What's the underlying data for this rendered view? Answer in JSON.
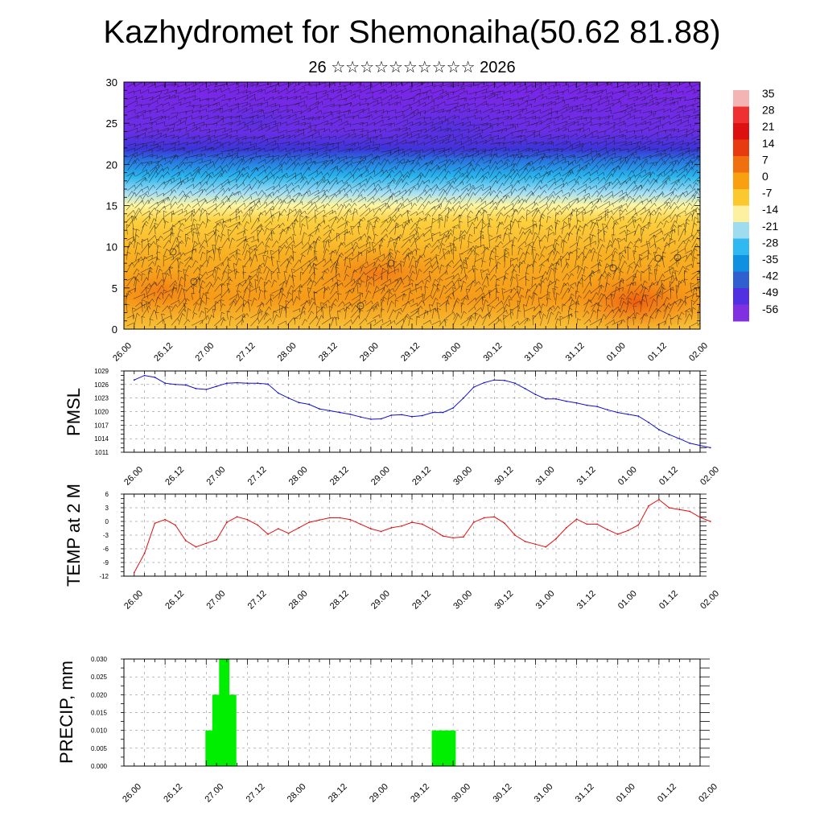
{
  "title": "Kazhydromet for Shemonaiha(50.62 81.88)",
  "subtitle": "26 ☆☆☆☆☆☆☆☆☆☆ 2026",
  "time_labels": [
    "26.00",
    "26.12",
    "27.00",
    "27.12",
    "28.00",
    "28.12",
    "29.00",
    "29.12",
    "30.00",
    "30.12",
    "31.00",
    "31.12",
    "01.00",
    "01.12",
    "02.00"
  ],
  "colors": {
    "pmsl_line": "#1010d0",
    "temp_line": "#e01010",
    "precip_bar": "#00ee00"
  },
  "chart_data": [
    {
      "type": "heatmap",
      "name": "vertical temperature cross-section with wind barbs",
      "ylim": [
        0,
        30
      ],
      "yticks": [
        0,
        5,
        10,
        15,
        20,
        25,
        30
      ],
      "colorbar_ticks": [
        35,
        28,
        21,
        14,
        7,
        0,
        -7,
        -14,
        -21,
        -28,
        -35,
        -42,
        -49,
        -56
      ],
      "colorbar_colors": [
        "#f4b4b4",
        "#ee3030",
        "#dd1010",
        "#e83a10",
        "#f07010",
        "#f8a010",
        "#fbc830",
        "#fdf0a0",
        "#a0dcf0",
        "#30b8f0",
        "#1090e0",
        "#3060d0",
        "#5030e0",
        "#8030e0"
      ]
    },
    {
      "type": "line",
      "name": "pmsl",
      "ylabel": "PMSL",
      "ylim": [
        1011,
        1029
      ],
      "yticks": [
        1011,
        1014,
        1017,
        1020,
        1023,
        1026,
        1029
      ],
      "values": [
        1027.0,
        1028.0,
        1027.6,
        1026.3,
        1026.0,
        1025.9,
        1025.1,
        1024.9,
        1025.6,
        1026.3,
        1026.4,
        1026.3,
        1026.3,
        1026.1,
        1024.1,
        1023.0,
        1022.0,
        1021.6,
        1020.6,
        1020.2,
        1019.8,
        1019.4,
        1018.8,
        1018.3,
        1018.4,
        1019.2,
        1019.3,
        1018.9,
        1019.1,
        1019.8,
        1019.8,
        1020.8,
        1023.0,
        1025.4,
        1026.4,
        1027.0,
        1026.9,
        1026.3,
        1025.1,
        1023.8,
        1022.8,
        1022.8,
        1022.3,
        1021.9,
        1021.4,
        1021.1,
        1020.4,
        1019.8,
        1019.4,
        1019.0,
        1017.6,
        1016.0,
        1014.9,
        1014.0,
        1013.0,
        1012.5,
        1012.0
      ]
    },
    {
      "type": "line",
      "name": "temperature",
      "ylabel": "TEMP at 2 M",
      "ylim": [
        -12,
        6
      ],
      "yticks": [
        -12,
        -9,
        -6,
        -3,
        0,
        3,
        6
      ],
      "values": [
        -11.2,
        -7.0,
        -0.4,
        0.4,
        -0.8,
        -4.2,
        -5.6,
        -4.8,
        -4.0,
        -0.2,
        1.0,
        0.4,
        -0.8,
        -2.8,
        -1.6,
        -2.6,
        -1.4,
        -0.2,
        0.3,
        0.8,
        0.8,
        0.4,
        -0.6,
        -1.6,
        -2.2,
        -1.4,
        -1.0,
        -0.2,
        -0.6,
        -1.8,
        -3.2,
        -3.6,
        -3.4,
        -0.2,
        0.8,
        1.0,
        -0.4,
        -3.0,
        -4.4,
        -5.0,
        -5.6,
        -3.8,
        -1.4,
        0.5,
        -0.6,
        -0.6,
        -1.8,
        -2.8,
        -2.0,
        -0.8,
        3.4,
        4.8,
        3.0,
        2.6,
        2.2,
        0.9,
        0.0
      ]
    },
    {
      "type": "bar",
      "name": "precipitation",
      "ylabel": "PRECIP, mm",
      "ylim": [
        0,
        0.03
      ],
      "yticks": [
        "0.000",
        "0.005",
        "0.010",
        "0.015",
        "0.020",
        "0.025",
        "0.030"
      ],
      "x": [
        25,
        26,
        27,
        28,
        29,
        30,
        31,
        32,
        33,
        34,
        35,
        36,
        37,
        38,
        39,
        40,
        41,
        42,
        43,
        44,
        45,
        46,
        47,
        48,
        49,
        50
      ],
      "values": [
        0,
        0,
        0,
        0,
        0,
        0,
        0,
        0,
        0,
        0,
        0,
        0,
        0,
        0,
        0,
        0,
        0,
        0,
        0,
        0,
        0,
        0,
        0,
        0,
        0,
        0
      ],
      "bars": [
        {
          "hour": 24,
          "value": 0.01
        },
        {
          "hour": 26,
          "value": 0.02
        },
        {
          "hour": 28,
          "value": 0.03
        },
        {
          "hour": 30,
          "value": 0.02
        },
        {
          "hour": 90,
          "value": 0.01
        },
        {
          "hour": 92,
          "value": 0.01
        },
        {
          "hour": 94,
          "value": 0.01
        }
      ]
    }
  ]
}
